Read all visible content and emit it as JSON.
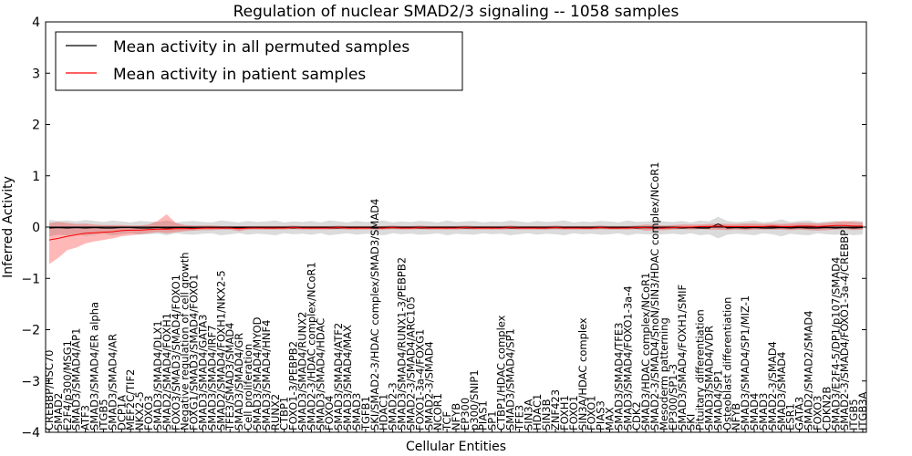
{
  "chart_data": {
    "type": "line",
    "title": "Regulation of nuclear SMAD2/3 signaling -- 1058 samples",
    "xlabel": "Cellular Entities",
    "ylabel": "Inferred Activity",
    "ylim": [
      -4,
      4
    ],
    "yticks": [
      -4,
      -3,
      -2,
      -1,
      0,
      1,
      2,
      3,
      4
    ],
    "ytick_labels": [
      "−4",
      "−3",
      "−2",
      "−1",
      "0",
      "1",
      "2",
      "3",
      "4"
    ],
    "legend": {
      "location": "top-left",
      "entries": [
        {
          "label": "Mean activity in all permuted samples",
          "color": "#000000"
        },
        {
          "label": "Mean activity in patient samples",
          "color": "#ff0000"
        }
      ]
    },
    "categories": [
      "CREBBP/HSC70",
      "SMAD2",
      "E2F4/p300/MSG1",
      "SMAD3/SMAD4/AP1",
      "ATF3",
      "SMAD3/SMAD4/ER alpha",
      "ITGB5",
      "SMAD3/SMAD4/AR",
      "DCP1A",
      "MEF2C/TIF2",
      "NKX2-5",
      "FOXO3",
      "SMAD3/SMAD4/DLX1",
      "SMAD2/SMAD4/FOXH1",
      "FOXO3/SMAD3/SMAD4/FOXO1",
      "Negative regulation of cell growth",
      "FOXG1/SMAD3/SMAD4/FOXO1",
      "SMAD3/SMAD4/GATA3",
      "SMAD3/SMAD4/IRF7",
      "SMAD2/SMAD4/FOXH1/NKX2-5",
      "TFE3/SMAD3/SMAD4",
      "SMAD3/SMAD4/GR",
      "Cell proliferation",
      "SMAD3/SMAD4/MYOD",
      "SMAD3/SMAD4/HNF4",
      "RUNX2",
      "CTBP1",
      "FOXO1-3/PEBPB2",
      "SMAD3/SMAD4/RUNX2",
      "SMAD2-3/HDAC complex/NCoR1",
      "SMAD3/SMAD4/HDAC",
      "FOXO4",
      "SMAD3/SMAD4/ATF2",
      "SMAD3/SMAD4/MAX",
      "SMAD3",
      "TGFB1",
      "SKI/SMAD2-3/HDAC complex/SMAD3/SMAD4",
      "HDAC1",
      "SMAD2-3",
      "SMAD3/SMAD4/RUNX1-3/PEBPB2",
      "SMAD2-3/SMAD4/ARC105",
      "FOXO1-3a-4/FOXG1",
      "SMAD2-3/SMAD4",
      "NCOR1",
      "TCF",
      "NFYB",
      "EP300",
      "p300/SNIP1",
      "PIAS1",
      "SP1",
      "CTBP1/HDAC complex",
      "SMAD3/SMAD4/SP1",
      "TFE3",
      "SIN3A",
      "HDAC1",
      "SIN3B",
      "ZNF423",
      "FOXH1",
      "FOXO1",
      "SIN3A/HDAC complex",
      "FOXO1",
      "PIAS3",
      "MAX",
      "SMAD3/SMAD4/TFE3",
      "SMAD3/SMAD4/FOXO1-3a-4",
      "CDK2",
      "SMAD3/HDAC complex/NCoR1",
      "SMAD2-3/SMAD4/SnoN/SIN3/HDAC complex/NCoR1",
      "Mesoderm patterning",
      "EP300/SP1-3",
      "SMAD3/SMAD4/FOXH1/SMIF",
      "SKI",
      "Pituitary differentiation",
      "SMAD3/SMAD4/VDR",
      "SMAD4/SP1",
      "Osteoblast differentiation",
      "NFYB",
      "SMAD3/SMAD4/SP1/MIZ-1",
      "SMAD4",
      "SMAD3",
      "SMAD2-3/SMAD4",
      "SMAD3/SMAD4",
      "ESR1",
      "GATA3",
      "SMAD2/SMAD2/SMAD4",
      "FOXO3",
      "CDKN2B",
      "SMAD3/E2F4-5/DP1/p107/SMAD4",
      "SMAD2-3/SMAD4/FOXO1-3a-4/CREBBP",
      "ITGB5",
      "ITGB3A"
    ],
    "series": [
      {
        "name": "Mean activity in all permuted samples",
        "color": "#000000",
        "values": [
          -0.02,
          -0.01,
          -0.02,
          -0.01,
          -0.02,
          -0.01,
          -0.02,
          -0.02,
          -0.01,
          -0.01,
          -0.02,
          -0.02,
          -0.01,
          -0.02,
          -0.01,
          -0.01,
          -0.02,
          -0.02,
          -0.01,
          -0.02,
          -0.02,
          -0.01,
          -0.02,
          -0.01,
          -0.02,
          -0.02,
          -0.01,
          -0.02,
          -0.01,
          -0.02,
          -0.01,
          -0.02,
          -0.02,
          -0.01,
          -0.02,
          -0.01,
          -0.02,
          -0.02,
          -0.01,
          -0.02,
          -0.01,
          -0.02,
          -0.02,
          -0.01,
          -0.02,
          -0.01,
          -0.02,
          -0.02,
          -0.01,
          -0.02,
          -0.01,
          -0.02,
          -0.02,
          -0.01,
          -0.02,
          -0.02,
          -0.01,
          -0.02,
          -0.01,
          -0.02,
          -0.02,
          -0.01,
          -0.02,
          -0.02,
          -0.01,
          -0.02,
          -0.01,
          -0.02,
          -0.02,
          -0.01,
          -0.02,
          -0.01,
          -0.02,
          -0.02,
          0.06,
          -0.02,
          -0.01,
          -0.02,
          -0.01,
          -0.02,
          -0.02,
          -0.01,
          -0.02,
          -0.01,
          -0.02,
          -0.02,
          -0.01,
          -0.02,
          -0.01,
          -0.02,
          -0.01
        ]
      },
      {
        "name": "Mean activity in patient samples",
        "color": "#ff0000",
        "values": [
          -0.25,
          -0.22,
          -0.18,
          -0.15,
          -0.12,
          -0.11,
          -0.1,
          -0.09,
          -0.07,
          -0.06,
          -0.06,
          -0.05,
          -0.04,
          -0.04,
          -0.03,
          -0.03,
          -0.03,
          -0.02,
          -0.02,
          -0.02,
          -0.02,
          -0.03,
          -0.02,
          -0.02,
          -0.02,
          -0.02,
          -0.02,
          -0.01,
          -0.02,
          -0.02,
          -0.02,
          -0.02,
          -0.01,
          -0.02,
          -0.02,
          -0.02,
          -0.02,
          -0.02,
          -0.01,
          -0.02,
          -0.02,
          -0.01,
          -0.02,
          -0.02,
          -0.02,
          -0.02,
          -0.01,
          -0.02,
          -0.02,
          -0.02,
          -0.02,
          -0.01,
          -0.02,
          -0.02,
          -0.02,
          -0.02,
          -0.01,
          -0.02,
          -0.02,
          -0.02,
          -0.02,
          -0.01,
          -0.02,
          -0.02,
          -0.02,
          -0.01,
          -0.01,
          -0.02,
          -0.02,
          -0.01,
          0.0,
          0.0,
          0.01,
          0.01,
          0.02,
          0.01,
          0.01,
          0.01,
          0.01,
          0.01,
          0.02,
          0.01,
          0.01,
          0.02,
          0.02,
          0.01,
          0.02,
          0.03,
          0.03,
          0.02,
          0.02
        ]
      }
    ],
    "bands": [
      {
        "name": "Permuted samples spread",
        "color": "#b0b0b0",
        "lower": [
          -0.18,
          -0.15,
          -0.16,
          -0.14,
          -0.17,
          -0.15,
          -0.13,
          -0.16,
          -0.14,
          -0.12,
          -0.15,
          -0.14,
          -0.13,
          -0.16,
          -0.12,
          -0.14,
          -0.15,
          -0.13,
          -0.12,
          -0.16,
          -0.14,
          -0.12,
          -0.15,
          -0.13,
          -0.14,
          -0.16,
          -0.12,
          -0.14,
          -0.13,
          -0.15,
          -0.12,
          -0.16,
          -0.14,
          -0.12,
          -0.15,
          -0.13,
          -0.14,
          -0.16,
          -0.12,
          -0.14,
          -0.13,
          -0.15,
          -0.14,
          -0.12,
          -0.16,
          -0.13,
          -0.14,
          -0.15,
          -0.12,
          -0.14,
          -0.13,
          -0.16,
          -0.14,
          -0.12,
          -0.15,
          -0.13,
          -0.14,
          -0.16,
          -0.12,
          -0.14,
          -0.13,
          -0.15,
          -0.14,
          -0.12,
          -0.16,
          -0.13,
          -0.14,
          -0.15,
          -0.14,
          -0.13,
          -0.15,
          -0.12,
          -0.16,
          -0.14,
          -0.22,
          -0.15,
          -0.13,
          -0.14,
          -0.16,
          -0.12,
          -0.14,
          -0.18,
          -0.13,
          -0.15,
          -0.16,
          -0.12,
          -0.14,
          -0.15,
          -0.13,
          -0.16,
          -0.14
        ],
        "upper": [
          0.14,
          0.12,
          0.13,
          0.11,
          0.14,
          0.12,
          0.1,
          0.13,
          0.11,
          0.09,
          0.12,
          0.11,
          0.1,
          0.13,
          0.09,
          0.11,
          0.12,
          0.1,
          0.09,
          0.13,
          0.11,
          0.09,
          0.12,
          0.1,
          0.11,
          0.13,
          0.09,
          0.11,
          0.1,
          0.12,
          0.09,
          0.13,
          0.11,
          0.09,
          0.12,
          0.1,
          0.11,
          0.13,
          0.09,
          0.11,
          0.1,
          0.12,
          0.11,
          0.09,
          0.13,
          0.1,
          0.11,
          0.12,
          0.09,
          0.11,
          0.1,
          0.13,
          0.11,
          0.09,
          0.12,
          0.1,
          0.11,
          0.13,
          0.09,
          0.11,
          0.1,
          0.12,
          0.11,
          0.09,
          0.13,
          0.1,
          0.11,
          0.12,
          0.11,
          0.1,
          0.12,
          0.09,
          0.13,
          0.11,
          0.2,
          0.12,
          0.1,
          0.11,
          0.13,
          0.09,
          0.11,
          0.15,
          0.1,
          0.12,
          0.13,
          0.09,
          0.11,
          0.12,
          0.1,
          0.13,
          0.11
        ]
      },
      {
        "name": "Patient samples spread",
        "color": "#ff0000",
        "lower": [
          -0.72,
          -0.6,
          -0.45,
          -0.4,
          -0.32,
          -0.28,
          -0.25,
          -0.22,
          -0.18,
          -0.16,
          -0.14,
          -0.12,
          -0.1,
          -0.12,
          -0.1,
          -0.08,
          -0.07,
          -0.06,
          -0.06,
          -0.05,
          -0.05,
          -0.08,
          -0.05,
          -0.05,
          -0.05,
          -0.05,
          -0.05,
          -0.04,
          -0.05,
          -0.05,
          -0.05,
          -0.05,
          -0.04,
          -0.05,
          -0.05,
          -0.05,
          -0.05,
          -0.05,
          -0.04,
          -0.05,
          -0.05,
          -0.04,
          -0.05,
          -0.05,
          -0.05,
          -0.05,
          -0.04,
          -0.05,
          -0.05,
          -0.05,
          -0.05,
          -0.04,
          -0.05,
          -0.05,
          -0.05,
          -0.05,
          -0.04,
          -0.05,
          -0.05,
          -0.05,
          -0.05,
          -0.04,
          -0.05,
          -0.05,
          -0.05,
          -0.04,
          -0.07,
          -0.06,
          -0.06,
          -0.05,
          -0.04,
          -0.05,
          -0.04,
          -0.05,
          -0.05,
          -0.06,
          -0.05,
          -0.06,
          -0.05,
          -0.05,
          -0.05,
          -0.05,
          -0.06,
          -0.05,
          -0.06,
          -0.07,
          -0.06,
          -0.05,
          -0.04,
          -0.06,
          -0.05
        ],
        "upper": [
          0.08,
          0.1,
          0.08,
          0.06,
          0.07,
          0.05,
          0.04,
          0.04,
          0.04,
          0.03,
          0.03,
          0.05,
          0.12,
          0.25,
          0.08,
          0.04,
          0.03,
          0.03,
          0.03,
          0.02,
          0.02,
          0.02,
          0.02,
          0.02,
          0.02,
          0.02,
          0.02,
          0.03,
          0.02,
          0.02,
          0.02,
          0.02,
          0.03,
          0.02,
          0.02,
          0.02,
          0.02,
          0.02,
          0.03,
          0.02,
          0.02,
          0.03,
          0.02,
          0.02,
          0.02,
          0.02,
          0.03,
          0.02,
          0.02,
          0.02,
          0.02,
          0.03,
          0.02,
          0.02,
          0.02,
          0.02,
          0.03,
          0.02,
          0.02,
          0.02,
          0.02,
          0.03,
          0.02,
          0.02,
          0.02,
          0.03,
          0.05,
          0.04,
          0.03,
          0.04,
          0.05,
          0.05,
          0.05,
          0.06,
          0.07,
          0.06,
          0.06,
          0.07,
          0.07,
          0.06,
          0.07,
          0.06,
          0.07,
          0.08,
          0.08,
          0.07,
          0.08,
          0.1,
          0.12,
          0.1,
          0.09
        ]
      }
    ]
  }
}
